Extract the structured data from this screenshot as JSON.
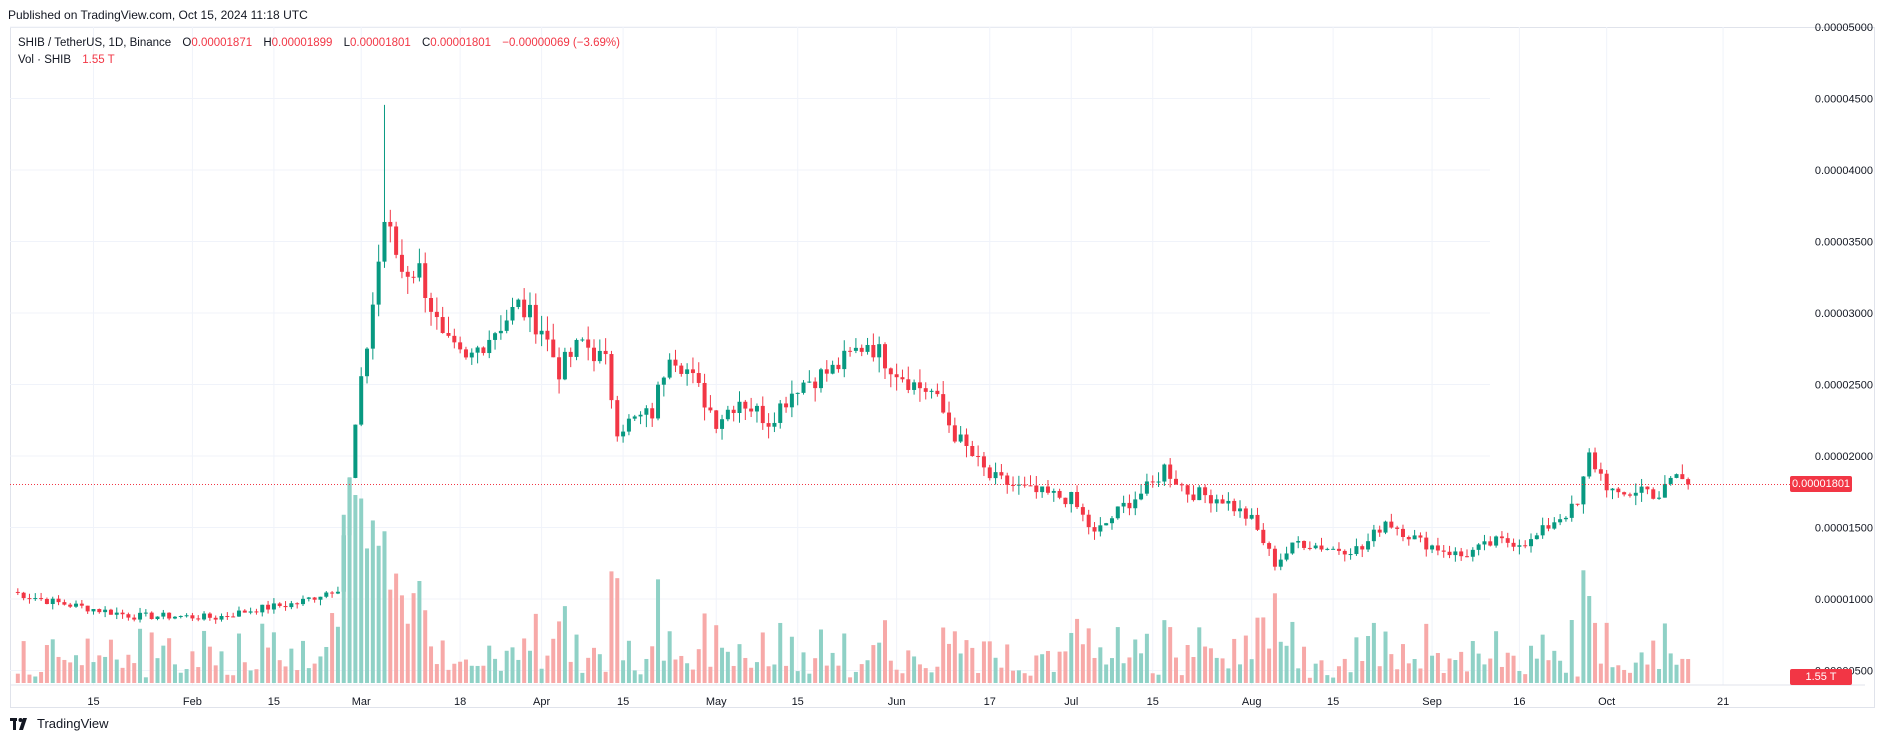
{
  "header": {
    "published": "Published on TradingView.com, Oct 15, 2024 11:18 UTC"
  },
  "legend": {
    "symbol": "SHIB / TetherUS, 1D, Binance",
    "open_label": "O",
    "open": "0.00001871",
    "high_label": "H",
    "high": "0.00001899",
    "low_label": "L",
    "low": "0.00001801",
    "close_label": "C",
    "close": "0.00001801",
    "change": "−0.00000069 (−3.69%)",
    "vol_label": "Vol · SHIB",
    "vol_value": "1.55 T"
  },
  "price_tag": "0.00001801",
  "volume_tag": "1.55 T",
  "footer": {
    "brand": "TradingView"
  },
  "colors": {
    "up": "#089981",
    "down": "#f23645",
    "up_volume": "#8fd1c6",
    "down_volume": "#f7a9a8",
    "grid": "#f0f3fa"
  },
  "chart_data": {
    "type": "candlestick",
    "symbol": "SHIB / TetherUS",
    "interval": "1D",
    "exchange": "Binance",
    "y_axis_ticks": [
      "0.00005000",
      "0.00004500",
      "0.00004000",
      "0.00003500",
      "0.00003000",
      "0.00002500",
      "0.00002000",
      "0.00001500",
      "0.00001000",
      "0.00000500"
    ],
    "y_axis_values": [
      5e-05,
      4.5e-05,
      4e-05,
      3.5e-05,
      3e-05,
      2.5e-05,
      2e-05,
      1.5e-05,
      1e-05,
      5e-06
    ],
    "x_axis_ticks": [
      "15",
      "Feb",
      "15",
      "Mar",
      "18",
      "Apr",
      "15",
      "May",
      "15",
      "Jun",
      "17",
      "Jul",
      "15",
      "Aug",
      "15",
      "Sep",
      "16",
      "Oct",
      "21"
    ],
    "last_price": 1.801e-05,
    "grid": true,
    "volume_pane": true,
    "close_path": [
      [
        "2024-01-01",
        1.05e-05
      ],
      [
        "2024-01-08",
        9.8e-06
      ],
      [
        "2024-01-15",
        9.3e-06
      ],
      [
        "2024-01-22",
        8.8e-06
      ],
      [
        "2024-01-29",
        8.8e-06
      ],
      [
        "2024-02-05",
        8.7e-06
      ],
      [
        "2024-02-12",
        9.3e-06
      ],
      [
        "2024-02-19",
        9.7e-06
      ],
      [
        "2024-02-26",
        1.08e-05
      ],
      [
        "2024-02-29",
        2.2e-05
      ],
      [
        "2024-03-05",
        3.65e-05
      ],
      [
        "2024-03-08",
        3.3e-05
      ],
      [
        "2024-03-11",
        3.3e-05
      ],
      [
        "2024-03-15",
        2.8e-05
      ],
      [
        "2024-03-19",
        2.65e-05
      ],
      [
        "2024-03-22",
        2.8e-05
      ],
      [
        "2024-03-28",
        3.05e-05
      ],
      [
        "2024-04-01",
        2.9e-05
      ],
      [
        "2024-04-04",
        2.6e-05
      ],
      [
        "2024-04-08",
        2.8e-05
      ],
      [
        "2024-04-12",
        2.65e-05
      ],
      [
        "2024-04-14",
        2.2e-05
      ],
      [
        "2024-04-20",
        2.3e-05
      ],
      [
        "2024-04-23",
        2.75e-05
      ],
      [
        "2024-04-26",
        2.6e-05
      ],
      [
        "2024-05-01",
        2.25e-05
      ],
      [
        "2024-05-05",
        2.4e-05
      ],
      [
        "2024-05-10",
        2.25e-05
      ],
      [
        "2024-05-15",
        2.5e-05
      ],
      [
        "2024-05-21",
        2.6e-05
      ],
      [
        "2024-05-27",
        2.8e-05
      ],
      [
        "2024-06-01",
        2.6e-05
      ],
      [
        "2024-06-04",
        2.5e-05
      ],
      [
        "2024-06-07",
        2.45e-05
      ],
      [
        "2024-06-11",
        2.15e-05
      ],
      [
        "2024-06-14",
        2e-05
      ],
      [
        "2024-06-17",
        1.85e-05
      ],
      [
        "2024-06-24",
        1.75e-05
      ],
      [
        "2024-07-01",
        1.7e-05
      ],
      [
        "2024-07-05",
        1.45e-05
      ],
      [
        "2024-07-10",
        1.65e-05
      ],
      [
        "2024-07-15",
        1.8e-05
      ],
      [
        "2024-07-17",
        1.92e-05
      ],
      [
        "2024-07-21",
        1.75e-05
      ],
      [
        "2024-07-27",
        1.7e-05
      ],
      [
        "2024-08-01",
        1.55e-05
      ],
      [
        "2024-08-05",
        1.25e-05
      ],
      [
        "2024-08-09",
        1.4e-05
      ],
      [
        "2024-08-15",
        1.35e-05
      ],
      [
        "2024-08-20",
        1.35e-05
      ],
      [
        "2024-08-24",
        1.55e-05
      ],
      [
        "2024-08-30",
        1.4e-05
      ],
      [
        "2024-09-06",
        1.3e-05
      ],
      [
        "2024-09-12",
        1.4e-05
      ],
      [
        "2024-09-18",
        1.4e-05
      ],
      [
        "2024-09-22",
        1.55e-05
      ],
      [
        "2024-09-26",
        1.65e-05
      ],
      [
        "2024-09-28",
        2e-05
      ],
      [
        "2024-10-01",
        1.8e-05
      ],
      [
        "2024-10-03",
        1.7e-05
      ],
      [
        "2024-10-07",
        1.78e-05
      ],
      [
        "2024-10-10",
        1.72e-05
      ],
      [
        "2024-10-13",
        1.87e-05
      ],
      [
        "2024-10-15",
        1.801e-05
      ]
    ]
  }
}
